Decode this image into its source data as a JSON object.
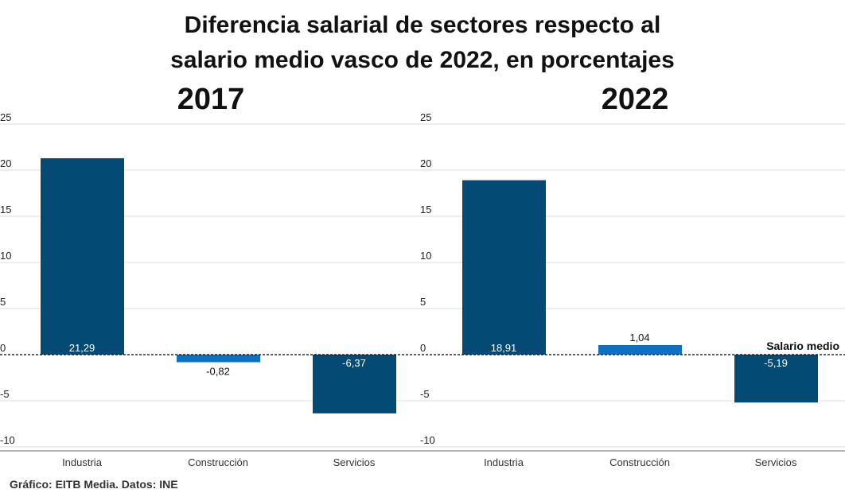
{
  "title_lines": [
    "Diferencia salarial de sectores respecto al",
    "salario medio vasco de 2022, en porcentajes"
  ],
  "source": "Gráfico: EITB Media. Datos: INE",
  "reference_line_label": "Salario medio",
  "colors": {
    "dark": "#034a75",
    "light": "#0a72c6",
    "grid": "#dddddd",
    "axis": "#000000"
  },
  "chart_data": [
    {
      "type": "bar",
      "title": "2017",
      "categories": [
        "Industria",
        "Construcción",
        "Servicios"
      ],
      "values": [
        21.29,
        -0.82,
        -6.37
      ],
      "value_labels": [
        "21,29",
        "-0,82",
        "-6,37"
      ],
      "bar_colors": [
        "#034a75",
        "#0a72c6",
        "#034a75"
      ],
      "yticks": [
        25,
        20,
        15,
        10,
        5,
        0,
        -5,
        -10
      ],
      "ytick_labels": [
        "25",
        "20",
        "15",
        "10",
        "5",
        "0",
        "-5",
        "-10"
      ],
      "ylim": [
        -10,
        25
      ]
    },
    {
      "type": "bar",
      "title": "2022",
      "categories": [
        "Industria",
        "Construcción",
        "Servicios"
      ],
      "values": [
        18.91,
        1.04,
        -5.19
      ],
      "value_labels": [
        "18,91",
        "1,04",
        "-5,19"
      ],
      "bar_colors": [
        "#034a75",
        "#0a72c6",
        "#034a75"
      ],
      "yticks": [
        25,
        20,
        15,
        10,
        5,
        0,
        -5,
        -10
      ],
      "ytick_labels": [
        "25",
        "20",
        "15",
        "10",
        "5",
        "0",
        "-5",
        "-10"
      ],
      "ylim": [
        -10,
        25
      ]
    }
  ]
}
